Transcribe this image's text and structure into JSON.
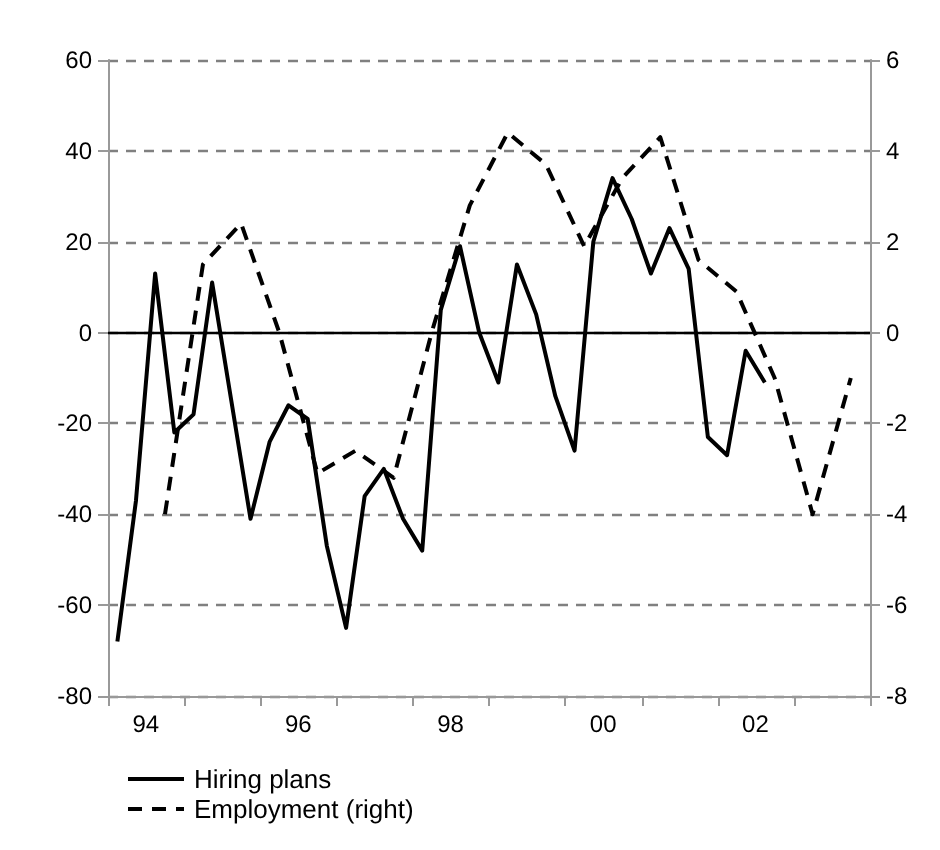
{
  "chart_data": {
    "type": "line",
    "legend": "bottom left",
    "grid": "y",
    "marker": "none",
    "xlim": [
      "1994-01-01",
      "2004-01-01"
    ],
    "xticks": [
      {
        "value": "1994-01-01",
        "label": null
      },
      {
        "value": "1994-07-01",
        "label": "94"
      },
      {
        "value": "1995-01-01",
        "label": null
      },
      {
        "value": "1996-01-01",
        "label": null
      },
      {
        "value": "1996-07-01",
        "label": "96"
      },
      {
        "value": "1997-01-01",
        "label": null
      },
      {
        "value": "1998-01-01",
        "label": null
      },
      {
        "value": "1998-07-01",
        "label": "98"
      },
      {
        "value": "1999-01-01",
        "label": null
      },
      {
        "value": "2000-01-01",
        "label": null
      },
      {
        "value": "2000-07-01",
        "label": "00"
      },
      {
        "value": "2001-01-01",
        "label": null
      },
      {
        "value": "2002-01-01",
        "label": null
      },
      {
        "value": "2002-07-01",
        "label": "02"
      },
      {
        "value": "2003-01-01",
        "label": null
      },
      {
        "value": "2004-01-01",
        "label": null
      }
    ],
    "ylim": [
      -80,
      60
    ],
    "yticks": [
      -80,
      -60,
      -40,
      -20,
      0,
      20,
      40,
      60
    ],
    "y2lim": [
      -8,
      6
    ],
    "y2ticks": [
      -8,
      -6,
      -4,
      -2,
      0,
      2,
      4,
      6
    ],
    "ref_lines": [
      {
        "axis": "y",
        "value": 0,
        "color": "#000000",
        "line_style": "solid"
      }
    ],
    "series": [
      {
        "name": "Hiring plans",
        "color": "#000000",
        "line_style": "solid",
        "x": [
          "1994-02-15",
          "1994-05-15",
          "1994-08-15",
          "1994-11-15",
          "1995-02-15",
          "1995-05-15",
          "1995-08-15",
          "1995-11-15",
          "1996-02-15",
          "1996-05-15",
          "1996-08-15",
          "1996-11-15",
          "1997-02-15",
          "1997-05-15",
          "1997-08-15",
          "1997-11-15",
          "1998-02-15",
          "1998-05-15",
          "1998-08-15",
          "1998-11-15",
          "1999-02-15",
          "1999-05-15",
          "1999-08-15",
          "1999-11-15",
          "2000-02-15",
          "2000-05-15",
          "2000-08-15",
          "2000-11-15",
          "2001-02-15",
          "2001-05-15",
          "2001-08-15",
          "2001-11-15",
          "2002-02-15",
          "2002-05-15",
          "2002-08-15"
        ],
        "values": [
          -68,
          -37,
          13,
          -22,
          -18,
          11,
          -15,
          -41,
          -24,
          -16,
          -19,
          -47,
          -65,
          -36,
          -30,
          -41,
          -48,
          5,
          19,
          0,
          -11,
          15,
          4,
          -14,
          -26,
          20,
          34,
          25,
          13,
          23,
          14,
          -23,
          -27,
          -4,
          -11
        ]
      },
      {
        "name": "Employment (right)",
        "color": "#000000",
        "line_style": "dashed",
        "axis": "y2",
        "x": [
          "1994-10-01",
          "1995-04-01",
          "1995-10-01",
          "1996-04-01",
          "1996-10-01",
          "1997-04-01",
          "1997-10-01",
          "1998-04-01",
          "1998-10-01",
          "1999-04-01",
          "1999-10-01",
          "2000-04-01",
          "2000-10-01",
          "2001-04-01",
          "2001-10-01",
          "2002-04-01",
          "2002-10-01",
          "2003-04-01",
          "2003-10-01"
        ],
        "values": [
          -4.0,
          1.5,
          2.4,
          0,
          -3.1,
          -2.6,
          -3.2,
          0,
          2.8,
          4.4,
          3.7,
          1.9,
          3.4,
          4.3,
          1.6,
          0.9,
          -1.0,
          -4.0,
          -1.0
        ]
      }
    ]
  }
}
